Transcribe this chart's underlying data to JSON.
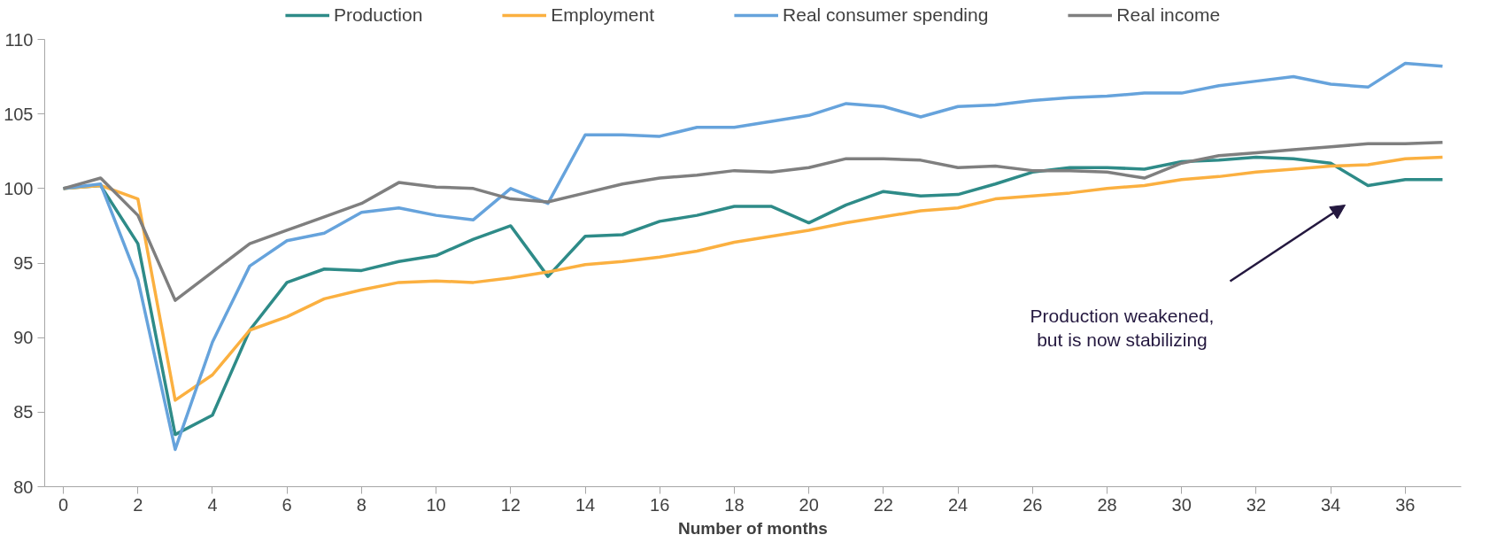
{
  "chart_data": {
    "type": "line",
    "xlabel": "Number of months",
    "x": [
      0,
      1,
      2,
      3,
      4,
      5,
      6,
      7,
      8,
      9,
      10,
      11,
      12,
      13,
      14,
      15,
      16,
      17,
      18,
      19,
      20,
      21,
      22,
      23,
      24,
      25,
      26,
      27,
      28,
      29,
      30,
      31,
      32,
      33,
      34,
      35,
      36,
      37
    ],
    "xlim": [
      -0.5,
      37.5
    ],
    "xticks": [
      0,
      2,
      4,
      6,
      8,
      10,
      12,
      14,
      16,
      18,
      20,
      22,
      24,
      26,
      28,
      30,
      32,
      34,
      36
    ],
    "ylim": [
      80,
      110
    ],
    "yticks": [
      80,
      85,
      90,
      95,
      100,
      105,
      110
    ],
    "grid": false,
    "legend": "top",
    "marker": "none",
    "line_style": "solid",
    "series": [
      {
        "name": "Production",
        "color": "#2e8b88",
        "values": [
          100,
          100.2,
          96.3,
          83.5,
          84.8,
          90.5,
          93.7,
          94.6,
          94.5,
          95.1,
          95.5,
          96.6,
          97.5,
          94.1,
          96.8,
          96.9,
          97.8,
          98.2,
          98.8,
          98.8,
          97.7,
          98.9,
          99.8,
          99.5,
          99.6,
          100.3,
          101.1,
          101.4,
          101.4,
          101.3,
          101.8,
          101.9,
          102.1,
          102.0,
          101.7,
          100.2,
          100.6,
          100.6
        ]
      },
      {
        "name": "Employment",
        "color": "#fbb040",
        "values": [
          100,
          100.2,
          99.3,
          85.8,
          87.5,
          90.5,
          91.4,
          92.6,
          93.2,
          93.7,
          93.8,
          93.7,
          94.0,
          94.4,
          94.9,
          95.1,
          95.4,
          95.8,
          96.4,
          96.8,
          97.2,
          97.7,
          98.1,
          98.5,
          98.7,
          99.3,
          99.5,
          99.7,
          100.0,
          100.2,
          100.6,
          100.8,
          101.1,
          101.3,
          101.5,
          101.6,
          102.0,
          102.1
        ]
      },
      {
        "name": "Real consumer spending",
        "color": "#66a3dc",
        "values": [
          100,
          100.3,
          93.9,
          82.5,
          89.7,
          94.8,
          96.5,
          97.0,
          98.4,
          98.7,
          98.2,
          97.9,
          100.0,
          99.0,
          103.6,
          103.6,
          103.5,
          104.1,
          104.1,
          104.5,
          104.9,
          105.7,
          105.5,
          104.8,
          105.5,
          105.6,
          105.9,
          106.1,
          106.2,
          106.4,
          106.4,
          106.9,
          107.2,
          107.5,
          107.0,
          106.8,
          108.4,
          108.2
        ]
      },
      {
        "name": "Real income",
        "color": "#7f7f7f",
        "values": [
          100,
          100.7,
          98.2,
          92.5,
          94.4,
          96.3,
          97.2,
          98.1,
          99.0,
          100.4,
          100.1,
          100.0,
          99.3,
          99.1,
          99.7,
          100.3,
          100.7,
          100.9,
          101.2,
          101.1,
          101.4,
          102.0,
          102.0,
          101.9,
          101.4,
          101.5,
          101.2,
          101.2,
          101.1,
          100.7,
          101.7,
          102.2,
          102.4,
          102.6,
          102.8,
          103.0,
          103.0,
          103.1
        ]
      }
    ],
    "annotations": [
      "Production weakened,\nbut is now stabilizing"
    ]
  }
}
